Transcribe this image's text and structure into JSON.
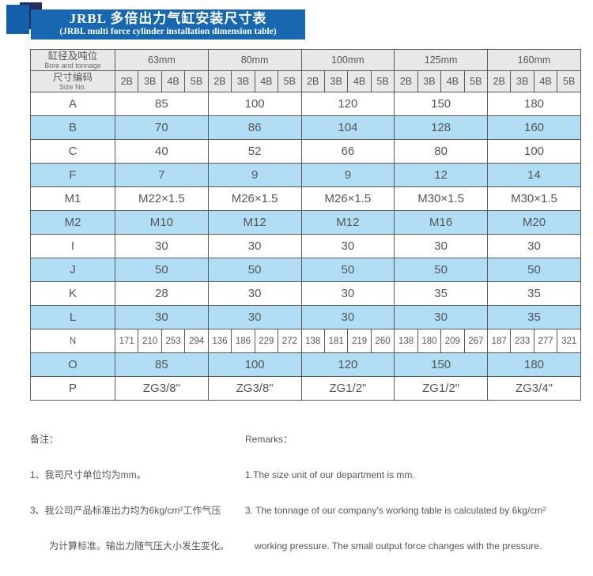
{
  "banner": {
    "title_cn": "JRBL 多倍出力气缸安装尺寸表",
    "title_en": "(JRBL multi force cylinder installation dimension table)"
  },
  "colors": {
    "banner_blue": "#1768b1",
    "square_blue": "#135fa8",
    "navy": "#212e5f",
    "header_gray": "#e8e8e8",
    "stripe_blue": "#b0ddf3",
    "border_gray": "#58595b"
  },
  "table": {
    "header": {
      "col1_row1_cn": "缸径及吨位",
      "col1_row1_en": "Bore and tonnage",
      "col1_row2_cn": "尺寸编码",
      "col1_row2_en": "Size No.",
      "bores": [
        "63mm",
        "80mm",
        "100mm",
        "125mm",
        "160mm"
      ],
      "size_nos": [
        "2B",
        "3B",
        "4B",
        "5B"
      ]
    },
    "rows": [
      {
        "label": "A",
        "type": "span",
        "values": [
          "85",
          "100",
          "120",
          "150",
          "180"
        ]
      },
      {
        "label": "B",
        "type": "span",
        "values": [
          "70",
          "86",
          "104",
          "128",
          "160"
        ]
      },
      {
        "label": "C",
        "type": "span",
        "values": [
          "40",
          "52",
          "66",
          "80",
          "100"
        ]
      },
      {
        "label": "F",
        "type": "span",
        "values": [
          "7",
          "9",
          "9",
          "12",
          "14"
        ]
      },
      {
        "label": "M1",
        "type": "span",
        "values": [
          "M22×1.5",
          "M26×1.5",
          "M26×1.5",
          "M30×1.5",
          "M30×1.5"
        ]
      },
      {
        "label": "M2",
        "type": "span",
        "values": [
          "M10",
          "M12",
          "M12",
          "M16",
          "M20"
        ]
      },
      {
        "label": "I",
        "type": "span",
        "values": [
          "30",
          "30",
          "30",
          "30",
          "30"
        ]
      },
      {
        "label": "J",
        "type": "span",
        "values": [
          "50",
          "50",
          "50",
          "50",
          "50"
        ]
      },
      {
        "label": "K",
        "type": "span",
        "values": [
          "28",
          "30",
          "30",
          "35",
          "35"
        ]
      },
      {
        "label": "L",
        "type": "span",
        "values": [
          "30",
          "30",
          "30",
          "30",
          "35"
        ]
      },
      {
        "label": "N",
        "type": "each",
        "values": [
          "171",
          "210",
          "253",
          "294",
          "136",
          "186",
          "229",
          "272",
          "138",
          "181",
          "219",
          "260",
          "138",
          "180",
          "209",
          "267",
          "187",
          "233",
          "277",
          "321"
        ]
      },
      {
        "label": "O",
        "type": "span",
        "values": [
          "85",
          "100",
          "120",
          "150",
          "180"
        ]
      },
      {
        "label": "P",
        "type": "span",
        "values": [
          "ZG3/8\"",
          "ZG3/8\"",
          "ZG1/2\"",
          "ZG1/2\"",
          "ZG3/4\""
        ]
      }
    ]
  },
  "notes": {
    "cn_title": "备注：",
    "cn_line1": "1、我司尺寸单位均为mm。",
    "cn_line2": "3、我公司产品标准出力均为6kg/cm²工作气压",
    "cn_line3": "为计算标准。输出力随气压大小发生变化。",
    "en_title": "Remarks：",
    "en_line1": "1.The size unit of our department is mm.",
    "en_line2": "3. The tonnage of our company's working table is calculated by 6kg/cm²",
    "en_line3": "working pressure. The small output force changes with the pressure."
  }
}
